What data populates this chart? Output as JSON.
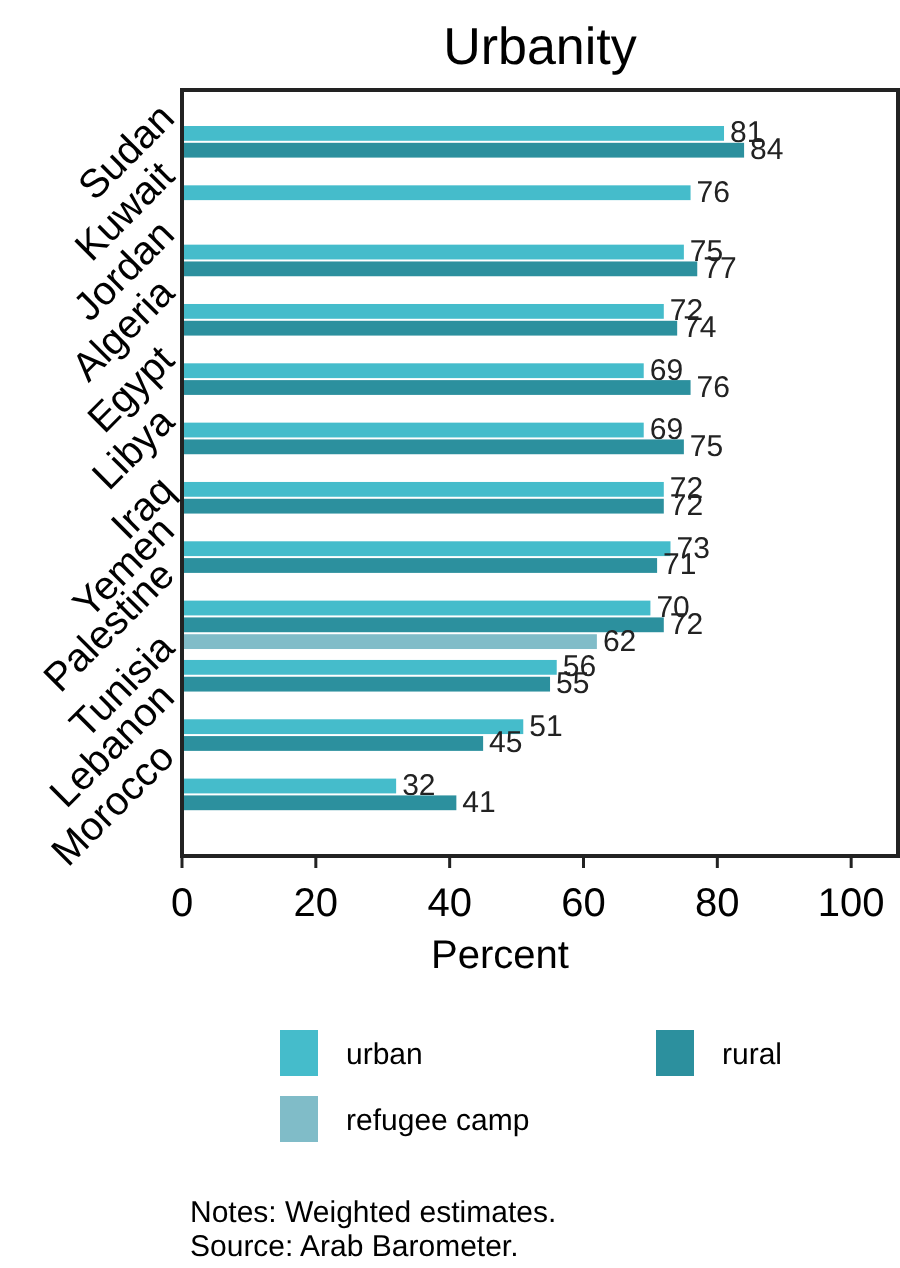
{
  "chart_data": {
    "type": "bar",
    "orientation": "horizontal",
    "title": "Urbanity",
    "xlabel": "Percent",
    "categories": [
      "Sudan",
      "Kuwait",
      "Jordan",
      "Algeria",
      "Egypt",
      "Libya",
      "Iraq",
      "Yemen",
      "Palestine",
      "Tunisia",
      "Lebanon",
      "Morocco"
    ],
    "series": [
      {
        "name": "urban",
        "color": "#45bccb",
        "values": [
          81,
          76,
          75,
          72,
          69,
          69,
          72,
          73,
          70,
          56,
          51,
          32
        ]
      },
      {
        "name": "rural",
        "color": "#2c909e",
        "values": [
          84,
          null,
          77,
          74,
          76,
          75,
          72,
          71,
          72,
          55,
          45,
          41
        ]
      },
      {
        "name": "refugee camp",
        "color": "#80bcc8",
        "values": [
          null,
          null,
          null,
          null,
          null,
          null,
          null,
          null,
          62,
          null,
          null,
          null
        ]
      }
    ],
    "xlim": [
      0,
      107
    ],
    "xticks": [
      0,
      20,
      40,
      60,
      80,
      100
    ],
    "data_labels": true,
    "grid": false,
    "legend": "bottom",
    "annotations": [
      "Notes: Weighted estimates.",
      "Source: Arab Barometer."
    ]
  }
}
